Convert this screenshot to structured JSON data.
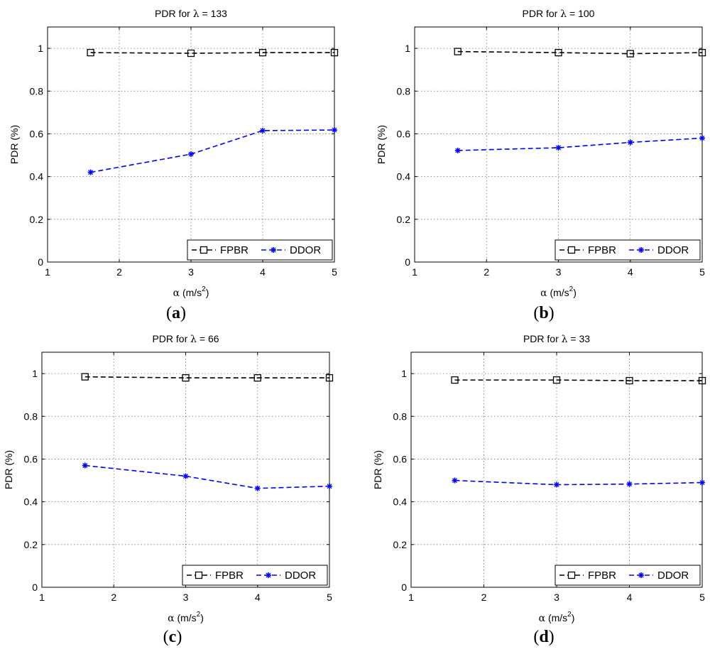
{
  "figure": {
    "panels": [
      {
        "label_open": "(",
        "label_letter": "a",
        "label_close": ")"
      },
      {
        "label_open": "(",
        "label_letter": "b",
        "label_close": ")"
      },
      {
        "label_open": "(",
        "label_letter": "c",
        "label_close": ")"
      },
      {
        "label_open": "(",
        "label_letter": "d",
        "label_close": ")"
      }
    ]
  },
  "colors": {
    "FPBR": "#000000",
    "DDOR": "#0000ff",
    "grid": "#b0b0b0"
  },
  "chart_data": [
    {
      "type": "line",
      "title_prefix": "PDR for ",
      "title_symbol": "λ",
      "title_suffix": " = 133",
      "xlabel_symbol": "α",
      "xlabel_unit": " (m/s",
      "xlabel_sup": "2",
      "xlabel_close": ")",
      "ylabel": "PDR (%)",
      "xlim": [
        1,
        5
      ],
      "ylim": [
        0,
        1.1
      ],
      "xticks": [
        "1",
        "2",
        "3",
        "4",
        "5"
      ],
      "yticks": [
        "0",
        "0.2",
        "0.4",
        "0.6",
        "0.8",
        "1"
      ],
      "grid": true,
      "legend_position": "bottom-right",
      "x": [
        1.6,
        3,
        4,
        5
      ],
      "series": [
        {
          "name": "FPBR",
          "marker": "square",
          "values": [
            0.98,
            0.977,
            0.98,
            0.98
          ]
        },
        {
          "name": "DDOR",
          "marker": "star",
          "values": [
            0.42,
            0.505,
            0.615,
            0.618
          ]
        }
      ]
    },
    {
      "type": "line",
      "title_prefix": "PDR for ",
      "title_symbol": "λ",
      "title_suffix": " = 100",
      "xlabel_symbol": "α",
      "xlabel_unit": " (m/s",
      "xlabel_sup": "2",
      "xlabel_close": ")",
      "ylabel": "PDR (%)",
      "xlim": [
        1,
        5
      ],
      "ylim": [
        0,
        1.1
      ],
      "xticks": [
        "1",
        "2",
        "3",
        "4",
        "5"
      ],
      "yticks": [
        "0",
        "0.2",
        "0.4",
        "0.6",
        "0.8",
        "1"
      ],
      "grid": true,
      "legend_position": "bottom-right",
      "x": [
        1.6,
        3,
        4,
        5
      ],
      "series": [
        {
          "name": "FPBR",
          "marker": "square",
          "values": [
            0.985,
            0.98,
            0.975,
            0.98
          ]
        },
        {
          "name": "DDOR",
          "marker": "star",
          "values": [
            0.522,
            0.535,
            0.56,
            0.58
          ]
        }
      ]
    },
    {
      "type": "line",
      "title_prefix": "PDR for ",
      "title_symbol": "λ",
      "title_suffix": " = 66",
      "xlabel_symbol": "α",
      "xlabel_unit": " (m/s",
      "xlabel_sup": "2",
      "xlabel_close": ")",
      "ylabel": "PDR (%)",
      "xlim": [
        1,
        5
      ],
      "ylim": [
        0,
        1.1
      ],
      "xticks": [
        "1",
        "2",
        "3",
        "4",
        "5"
      ],
      "yticks": [
        "0",
        "0.2",
        "0.4",
        "0.6",
        "0.8",
        "1"
      ],
      "grid": true,
      "legend_position": "bottom-right",
      "x": [
        1.6,
        3,
        4,
        5
      ],
      "series": [
        {
          "name": "FPBR",
          "marker": "square",
          "values": [
            0.985,
            0.98,
            0.98,
            0.98
          ]
        },
        {
          "name": "DDOR",
          "marker": "star",
          "values": [
            0.57,
            0.52,
            0.463,
            0.473
          ]
        }
      ]
    },
    {
      "type": "line",
      "title_prefix": "PDR for ",
      "title_symbol": "λ",
      "title_suffix": " = 33",
      "xlabel_symbol": "α",
      "xlabel_unit": " (m/s",
      "xlabel_sup": "2",
      "xlabel_close": ")",
      "ylabel": "PDR (%)",
      "xlim": [
        1,
        5
      ],
      "ylim": [
        0,
        1.1
      ],
      "xticks": [
        "1",
        "2",
        "3",
        "4",
        "5"
      ],
      "yticks": [
        "0",
        "0.2",
        "0.4",
        "0.6",
        "0.8",
        "1"
      ],
      "grid": true,
      "legend_position": "bottom-right",
      "x": [
        1.6,
        3,
        4,
        5
      ],
      "series": [
        {
          "name": "FPBR",
          "marker": "square",
          "values": [
            0.97,
            0.97,
            0.967,
            0.967
          ]
        },
        {
          "name": "DDOR",
          "marker": "star",
          "values": [
            0.5,
            0.48,
            0.483,
            0.49
          ]
        }
      ]
    }
  ]
}
